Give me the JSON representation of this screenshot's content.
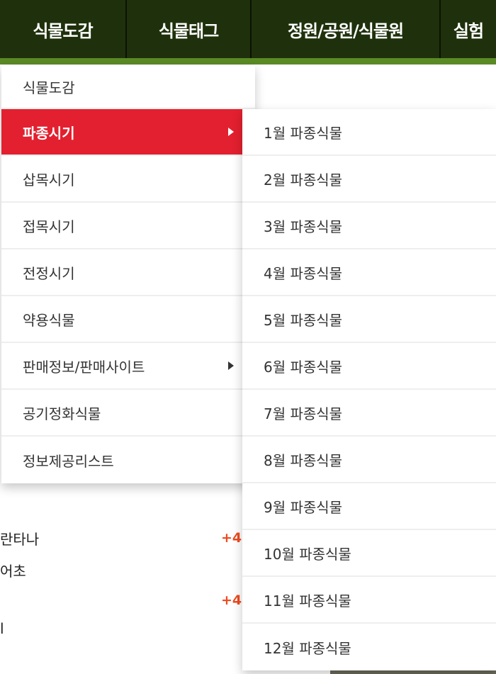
{
  "nav": [
    "식물도감",
    "식물태그",
    "정원/공원/식물원",
    "실험"
  ],
  "menu": [
    {
      "label": "식물도감"
    },
    {
      "label": "파종시기",
      "submenu": true,
      "active": true
    },
    {
      "label": "삽목시기"
    },
    {
      "label": "접목시기"
    },
    {
      "label": "전정시기"
    },
    {
      "label": "약용식물"
    },
    {
      "label": "판매정보/판매사이트",
      "submenu": true
    },
    {
      "label": "공기정화식물"
    },
    {
      "label": "정보제공리스트"
    }
  ],
  "submenu": [
    "1월 파종식물",
    "2월 파종식물",
    "3월 파종식물",
    "4월 파종식물",
    "5월 파종식물",
    "6월 파종식물",
    "7월 파종식물",
    "8월 파종식물",
    "9월 파종식물",
    "10월 파종식물",
    "11월 파종식물",
    "12월 파종식물"
  ],
  "background": {
    "items": [
      "란타나",
      "어초",
      "l"
    ],
    "badges": [
      "+4",
      "+4"
    ]
  },
  "colors": {
    "nav_bg": "#1f310c",
    "stripe": "#5a8a25",
    "active": "#e3202f",
    "badge": "#ef4a1f"
  }
}
